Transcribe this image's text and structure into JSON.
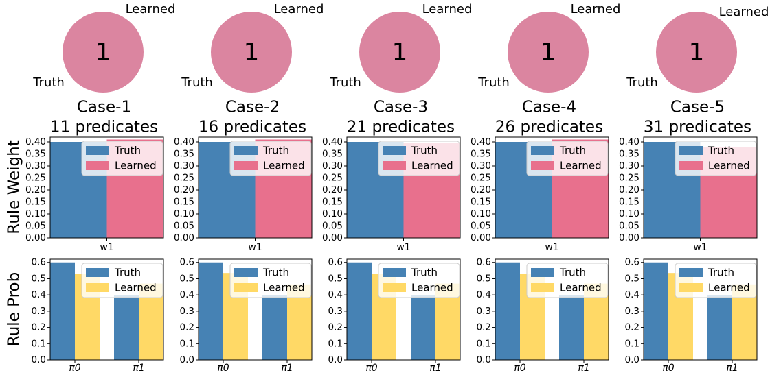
{
  "row_labels": {
    "weight": "Rule Weight",
    "prob": "Rule Prob"
  },
  "colors": {
    "truth": "#4682b4",
    "learned_weight": "#e8708d",
    "learned_prob": "#ffd966",
    "venn": "#db85a0"
  },
  "chart_data": [
    {
      "case": "Case-1",
      "predicates": "11 predicates",
      "venn": {
        "count": "1",
        "left_label": "Truth",
        "right_label": "Learned"
      },
      "weight": {
        "type": "bar",
        "categories": [
          "w1"
        ],
        "series": [
          {
            "name": "Truth",
            "values": [
              0.4
            ]
          },
          {
            "name": "Learned",
            "values": [
              0.41
            ]
          }
        ],
        "ylim": [
          0,
          0.42
        ],
        "yticks": [
          "0.00",
          "0.05",
          "0.10",
          "0.15",
          "0.20",
          "0.25",
          "0.30",
          "0.35",
          "0.40"
        ]
      },
      "prob": {
        "type": "bar",
        "categories": [
          "π0",
          "π1"
        ],
        "series": [
          {
            "name": "Truth",
            "values": [
              0.6,
              0.4
            ]
          },
          {
            "name": "Learned",
            "values": [
              0.53,
              0.47
            ]
          }
        ],
        "ylim": [
          0,
          0.62
        ],
        "yticks": [
          "0.0",
          "0.1",
          "0.2",
          "0.3",
          "0.4",
          "0.5",
          "0.6"
        ]
      }
    },
    {
      "case": "Case-2",
      "predicates": "16 predicates",
      "venn": {
        "count": "1",
        "left_label": "Truth",
        "right_label": "Learned"
      },
      "weight": {
        "type": "bar",
        "categories": [
          "w1"
        ],
        "series": [
          {
            "name": "Truth",
            "values": [
              0.4
            ]
          },
          {
            "name": "Learned",
            "values": [
              0.41
            ]
          }
        ],
        "ylim": [
          0,
          0.42
        ],
        "yticks": [
          "0.00",
          "0.05",
          "0.10",
          "0.15",
          "0.20",
          "0.25",
          "0.30",
          "0.35",
          "0.40"
        ]
      },
      "prob": {
        "type": "bar",
        "categories": [
          "π0",
          "π1"
        ],
        "series": [
          {
            "name": "Truth",
            "values": [
              0.6,
              0.4
            ]
          },
          {
            "name": "Learned",
            "values": [
              0.535,
              0.465
            ]
          }
        ],
        "ylim": [
          0,
          0.62
        ],
        "yticks": [
          "0.0",
          "0.1",
          "0.2",
          "0.3",
          "0.4",
          "0.5",
          "0.6"
        ]
      }
    },
    {
      "case": "Case-3",
      "predicates": "21 predicates",
      "venn": {
        "count": "1",
        "left_label": "Truth",
        "right_label": "Learned"
      },
      "weight": {
        "type": "bar",
        "categories": [
          "w1"
        ],
        "series": [
          {
            "name": "Truth",
            "values": [
              0.4
            ]
          },
          {
            "name": "Learned",
            "values": [
              0.395
            ]
          }
        ],
        "ylim": [
          0,
          0.42
        ],
        "yticks": [
          "0.00",
          "0.05",
          "0.10",
          "0.15",
          "0.20",
          "0.25",
          "0.30",
          "0.35",
          "0.40"
        ]
      },
      "prob": {
        "type": "bar",
        "categories": [
          "π0",
          "π1"
        ],
        "series": [
          {
            "name": "Truth",
            "values": [
              0.6,
              0.4
            ]
          },
          {
            "name": "Learned",
            "values": [
              0.53,
              0.47
            ]
          }
        ],
        "ylim": [
          0,
          0.62
        ],
        "yticks": [
          "0.0",
          "0.1",
          "0.2",
          "0.3",
          "0.4",
          "0.5",
          "0.6"
        ]
      }
    },
    {
      "case": "Case-4",
      "predicates": "26 predicates",
      "venn": {
        "count": "1",
        "left_label": "Truth",
        "right_label": "Learned"
      },
      "weight": {
        "type": "bar",
        "categories": [
          "w1"
        ],
        "series": [
          {
            "name": "Truth",
            "values": [
              0.4
            ]
          },
          {
            "name": "Learned",
            "values": [
              0.41
            ]
          }
        ],
        "ylim": [
          0,
          0.42
        ],
        "yticks": [
          "0.00",
          "0.05",
          "0.10",
          "0.15",
          "0.20",
          "0.25",
          "0.30",
          "0.35",
          "0.40"
        ]
      },
      "prob": {
        "type": "bar",
        "categories": [
          "π0",
          "π1"
        ],
        "series": [
          {
            "name": "Truth",
            "values": [
              0.6,
              0.4
            ]
          },
          {
            "name": "Learned",
            "values": [
              0.53,
              0.47
            ]
          }
        ],
        "ylim": [
          0,
          0.62
        ],
        "yticks": [
          "0.0",
          "0.1",
          "0.2",
          "0.3",
          "0.4",
          "0.5",
          "0.6"
        ]
      }
    },
    {
      "case": "Case-5",
      "predicates": "31 predicates",
      "venn": {
        "count": "1",
        "left_label": "Truth",
        "right_label": "Learned"
      },
      "weight": {
        "type": "bar",
        "categories": [
          "w1"
        ],
        "series": [
          {
            "name": "Truth",
            "values": [
              0.4
            ]
          },
          {
            "name": "Learned",
            "values": [
              0.38
            ]
          }
        ],
        "ylim": [
          0,
          0.42
        ],
        "yticks": [
          "0.00",
          "0.05",
          "0.10",
          "0.15",
          "0.20",
          "0.25",
          "0.30",
          "0.35",
          "0.40"
        ]
      },
      "prob": {
        "type": "bar",
        "categories": [
          "π0",
          "π1"
        ],
        "series": [
          {
            "name": "Truth",
            "values": [
              0.6,
              0.4
            ]
          },
          {
            "name": "Learned",
            "values": [
              0.535,
              0.465
            ]
          }
        ],
        "ylim": [
          0,
          0.62
        ],
        "yticks": [
          "0.0",
          "0.1",
          "0.2",
          "0.3",
          "0.4",
          "0.5",
          "0.6"
        ]
      }
    }
  ]
}
